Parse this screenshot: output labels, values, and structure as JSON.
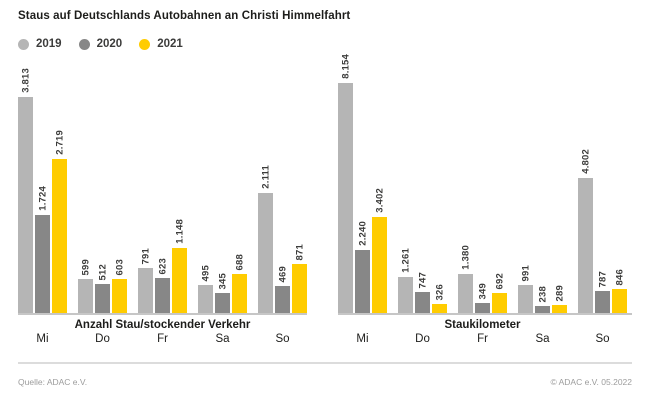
{
  "title": "Staus auf Deutschlands Autobahnen an Christi Himmelfahrt",
  "legend": [
    {
      "label": "2019",
      "color": "#b5b5b5"
    },
    {
      "label": "2020",
      "color": "#878787"
    },
    {
      "label": "2021",
      "color": "#ffcc00"
    }
  ],
  "footer": {
    "source": "Quelle: ADAC e.V.",
    "copyright": "© ADAC e.V. 05.2022"
  },
  "chart_data": [
    {
      "type": "bar",
      "title": "Anzahl Stau/stockender Verkehr",
      "categories": [
        "Mi",
        "Do",
        "Fr",
        "Sa",
        "So"
      ],
      "series": [
        {
          "name": "2019",
          "color": "#b5b5b5",
          "values": [
            3813,
            599,
            791,
            495,
            2111
          ],
          "labels": [
            "3.813",
            "599",
            "791",
            "495",
            "2.111"
          ]
        },
        {
          "name": "2020",
          "color": "#878787",
          "values": [
            1724,
            512,
            623,
            345,
            469
          ],
          "labels": [
            "1.724",
            "512",
            "623",
            "345",
            "469"
          ]
        },
        {
          "name": "2021",
          "color": "#ffcc00",
          "values": [
            2719,
            603,
            1148,
            688,
            871
          ],
          "labels": [
            "2.719",
            "603",
            "1.148",
            "688",
            "871"
          ]
        }
      ],
      "ylim": [
        0,
        8200
      ],
      "grid": false,
      "legend_position": "top",
      "value_labels": "rotated-90"
    },
    {
      "type": "bar",
      "title": "Staukilometer",
      "categories": [
        "Mi",
        "Do",
        "Fr",
        "Sa",
        "So"
      ],
      "series": [
        {
          "name": "2019",
          "color": "#b5b5b5",
          "values": [
            8154,
            1261,
            1380,
            991,
            4802
          ],
          "labels": [
            "8.154",
            "1.261",
            "1.380",
            "991",
            "4.802"
          ]
        },
        {
          "name": "2020",
          "color": "#878787",
          "values": [
            2240,
            747,
            349,
            238,
            787
          ],
          "labels": [
            "2.240",
            "747",
            "349",
            "238",
            "787"
          ]
        },
        {
          "name": "2021",
          "color": "#ffcc00",
          "values": [
            3402,
            326,
            692,
            289,
            846
          ],
          "labels": [
            "3.402",
            "326",
            "692",
            "289",
            "846"
          ]
        }
      ],
      "ylim": [
        0,
        8200
      ],
      "grid": false,
      "legend_position": "top",
      "value_labels": "rotated-90"
    }
  ]
}
